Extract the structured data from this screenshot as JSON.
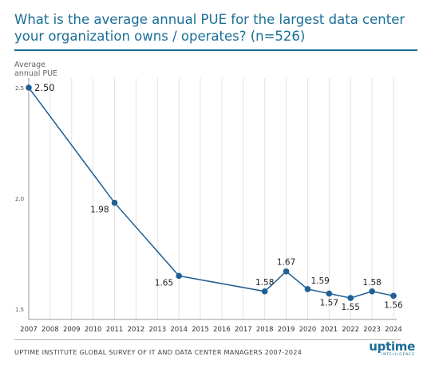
{
  "title": "What is the average annual PUE for the largest data center your organization owns / operates? (n=526)",
  "ylabel_line1": "Average",
  "ylabel_line2": "annual PUE",
  "source": "UPTIME INSTITUTE GLOBAL SURVEY OF IT AND DATA CENTER MANAGERS 2007-2024",
  "logo": {
    "main": "uptime",
    "sub": "INTELLIGENCE"
  },
  "colors": {
    "accent": "#1a6e96",
    "line": "#1f5f95",
    "grid": "#e3e3e3"
  },
  "chart_data": {
    "type": "line",
    "title": "What is the average annual PUE for the largest data center your organization owns / operates? (n=526)",
    "ylabel": "Average annual PUE",
    "xlabel": "",
    "x_ticks": [
      2007,
      2008,
      2009,
      2010,
      2011,
      2012,
      2013,
      2014,
      2015,
      2016,
      2017,
      2018,
      2019,
      2020,
      2021,
      2022,
      2023,
      2024
    ],
    "y_ticks": [
      {
        "value": 1.5,
        "label": "1.5"
      },
      {
        "value": 2.0,
        "label": "2.0"
      },
      {
        "value": 2.5,
        "label": "2.5"
      }
    ],
    "ylim": [
      1.5,
      2.5
    ],
    "xlim": [
      2007,
      2024
    ],
    "grid": "vertical",
    "points": [
      {
        "x": 2007,
        "y": 2.5,
        "label": "2.50",
        "pos": "right"
      },
      {
        "x": 2011,
        "y": 1.98,
        "label": "1.98",
        "pos": "left"
      },
      {
        "x": 2014,
        "y": 1.65,
        "label": "1.65",
        "pos": "left"
      },
      {
        "x": 2018,
        "y": 1.58,
        "label": "1.58",
        "pos": "above"
      },
      {
        "x": 2019,
        "y": 1.67,
        "label": "1.67",
        "pos": "above"
      },
      {
        "x": 2020,
        "y": 1.59,
        "label": "1.59",
        "pos": "above-right"
      },
      {
        "x": 2021,
        "y": 1.57,
        "label": "1.57",
        "pos": "below"
      },
      {
        "x": 2022,
        "y": 1.55,
        "label": "1.55",
        "pos": "below"
      },
      {
        "x": 2023,
        "y": 1.58,
        "label": "1.58",
        "pos": "above"
      },
      {
        "x": 2024,
        "y": 1.56,
        "label": "1.56",
        "pos": "below"
      }
    ]
  }
}
